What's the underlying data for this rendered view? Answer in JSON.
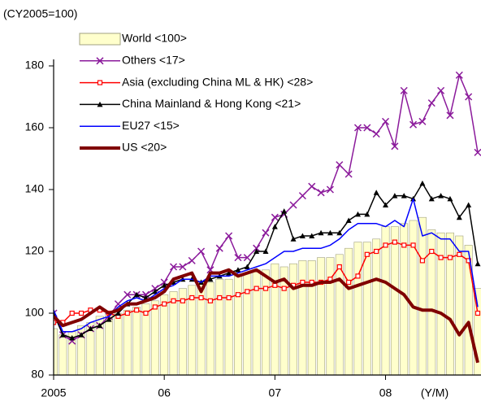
{
  "chart_data": {
    "type": "combo",
    "y_label": "(CY2005=100)",
    "x_label": "(Y/M)",
    "categories": [
      "2005",
      null,
      null,
      null,
      null,
      null,
      null,
      null,
      null,
      null,
      null,
      null,
      "06",
      null,
      null,
      null,
      null,
      null,
      null,
      null,
      null,
      null,
      null,
      null,
      "07",
      null,
      null,
      null,
      null,
      null,
      null,
      null,
      null,
      null,
      null,
      null,
      "08",
      null,
      null,
      null,
      null,
      null,
      null,
      null,
      null,
      null,
      null
    ],
    "ylim": [
      80,
      180
    ],
    "yticks": [
      80,
      100,
      120,
      140,
      160,
      180
    ],
    "legend": "top-left",
    "series": [
      {
        "name": "World <100>",
        "kind": "bar",
        "color": "#ffffcc",
        "values": [
          95,
          93,
          94,
          96,
          97,
          99,
          100,
          100,
          101,
          102,
          103,
          104,
          106,
          107,
          108,
          109,
          110,
          110,
          111,
          111,
          112,
          113,
          114,
          114,
          116,
          115,
          116,
          117,
          117,
          118,
          118,
          119,
          121,
          123,
          123,
          124,
          128,
          128,
          129,
          130,
          131,
          127,
          126,
          126,
          125,
          122,
          108
        ]
      },
      {
        "name": "Others <17>",
        "kind": "line",
        "marker": "x",
        "color": "#8b1a9b",
        "values": [
          100,
          93,
          91,
          93,
          95,
          96,
          99,
          103,
          106,
          106,
          106,
          108,
          110,
          115,
          115,
          117,
          120,
          114,
          121,
          125,
          118,
          118,
          121,
          126,
          131,
          132,
          135,
          138,
          141,
          139,
          140,
          148,
          145,
          160,
          160,
          158,
          162,
          154,
          172,
          161,
          162,
          168,
          172,
          164,
          177,
          170,
          152
        ]
      },
      {
        "name": "Asia (excluding China ML & HK)  <28>",
        "kind": "line",
        "marker": "square",
        "color": "#ff0000",
        "values": [
          97,
          97,
          100,
          100,
          101,
          101,
          100,
          99,
          100,
          101,
          100,
          102,
          103,
          104,
          104,
          105,
          105,
          104,
          105,
          105,
          106,
          107,
          108,
          108,
          109,
          108,
          109,
          110,
          110,
          110,
          111,
          115,
          110,
          112,
          119,
          120,
          122,
          123,
          122,
          122,
          117,
          120,
          118,
          118,
          119,
          117,
          100
        ]
      },
      {
        "name": "China Mainland & Hong Kong <21>",
        "kind": "line",
        "marker": "triangle",
        "color": "#000000",
        "values": [
          100,
          93,
          92,
          93,
          95,
          96,
          98,
          100,
          103,
          106,
          105,
          107,
          109,
          110,
          111,
          111,
          110,
          111,
          112,
          113,
          114,
          115,
          120,
          120,
          128,
          133,
          124,
          125,
          125,
          126,
          126,
          126,
          130,
          132,
          132,
          139,
          135,
          138,
          138,
          137,
          142,
          137,
          138,
          137,
          131,
          135,
          116
        ]
      },
      {
        "name": "EU27 <15>",
        "kind": "line",
        "marker": "none",
        "color": "#0000ff",
        "values": [
          101,
          94,
          94,
          95,
          97,
          98,
          99,
          102,
          104,
          105,
          104,
          106,
          108,
          109,
          111,
          111,
          110,
          112,
          112,
          112,
          113,
          114,
          115,
          116,
          118,
          120,
          120,
          121,
          121,
          121,
          122,
          124,
          127,
          129,
          129,
          129,
          128,
          130,
          128,
          137,
          125,
          126,
          124,
          124,
          120,
          120,
          102
        ]
      },
      {
        "name": "US <20>",
        "kind": "line",
        "marker": "none",
        "thick": true,
        "color": "#800000",
        "values": [
          99,
          96,
          97,
          98,
          100,
          102,
          100,
          101,
          103,
          103,
          104,
          105,
          107,
          111,
          112,
          113,
          107,
          113,
          113,
          114,
          112,
          113,
          114,
          112,
          110,
          111,
          108,
          109,
          109,
          110,
          110,
          111,
          108,
          109,
          110,
          111,
          110,
          108,
          106,
          102,
          101,
          101,
          100,
          98,
          93,
          97,
          84
        ]
      }
    ]
  }
}
